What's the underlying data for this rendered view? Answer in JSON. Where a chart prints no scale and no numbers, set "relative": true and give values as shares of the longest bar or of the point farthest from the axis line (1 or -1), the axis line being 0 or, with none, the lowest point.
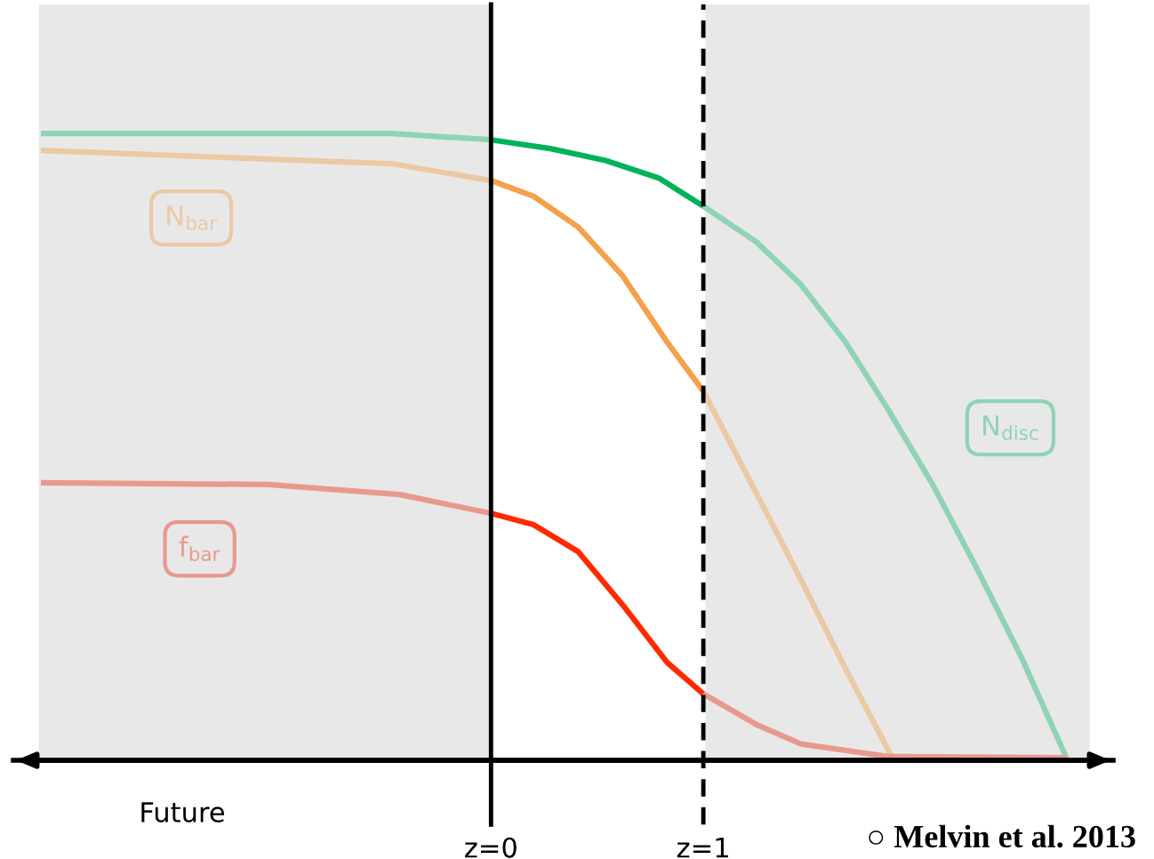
{
  "chart_data": {
    "type": "line",
    "relative": true,
    "xlim": [
      -2.25,
      2.93
    ],
    "xticks": [
      {
        "value": 0,
        "label": "z=0"
      },
      {
        "value": 1,
        "label": "z=1"
      }
    ],
    "series": [
      {
        "name": "N$_{disc}$",
        "color": "#8fd3b5",
        "x": [
          1.0,
          1.25,
          1.46,
          1.67,
          1.87,
          2.08,
          2.29,
          2.5,
          2.71
        ],
        "values": [
          0.884,
          0.827,
          0.759,
          0.667,
          0.56,
          0.44,
          0.305,
          0.163,
          0.004
        ]
      },
      {
        "color": "#8fd3b5",
        "x": [
          -2.12,
          -0.47,
          0
        ],
        "values": [
          1.0,
          1.0,
          0.99
        ]
      },
      {
        "color": "#00b359",
        "x": [
          0,
          0.28,
          0.54,
          0.79,
          1.0
        ],
        "values": [
          0.99,
          0.976,
          0.957,
          0.929,
          0.884
        ]
      },
      {
        "name": "N$_{bar}$",
        "color": "#ecc8a4",
        "x": [
          -2.12,
          -0.47,
          0
        ],
        "values": [
          0.973,
          0.952,
          0.925
        ]
      },
      {
        "color": "#f5a04a",
        "x": [
          0,
          0.2,
          0.41,
          0.62,
          0.83,
          1.0
        ],
        "values": [
          0.925,
          0.9,
          0.851,
          0.773,
          0.667,
          0.589
        ]
      },
      {
        "color": "#ecc8a4",
        "x": [
          1.0,
          1.25,
          1.46,
          1.67,
          1.89
        ],
        "values": [
          0.589,
          0.426,
          0.288,
          0.146,
          0.004
        ]
      },
      {
        "name": "f$_{bar}$",
        "color": "#e8998e",
        "x": [
          -2.12,
          -1.05,
          -0.43,
          0
        ],
        "values": [
          0.443,
          0.44,
          0.424,
          0.394
        ]
      },
      {
        "color": "#ff2a00",
        "x": [
          0,
          0.2,
          0.41,
          0.62,
          0.83,
          1.0
        ],
        "values": [
          0.394,
          0.376,
          0.333,
          0.248,
          0.156,
          0.106
        ]
      },
      {
        "color": "#e8998e",
        "x": [
          1.0,
          1.25,
          1.46,
          1.87,
          2.71
        ],
        "values": [
          0.106,
          0.057,
          0.026,
          0.006,
          0.004
        ]
      }
    ],
    "ref_lines": [
      {
        "axis": "x",
        "value": 0,
        "color": "#000000",
        "line_style": "solid"
      },
      {
        "axis": "x",
        "value": 1,
        "color": "#000000",
        "line_style": "dashed"
      }
    ],
    "bands": [
      {
        "axis": "x",
        "from": -2.13,
        "to": 0,
        "color": "#e8e8e8"
      },
      {
        "axis": "x",
        "from": 1.01,
        "to": 2.82,
        "color": "#e8e8e8"
      }
    ],
    "annotations": [
      "Future",
      "○ Melvin et al. 2013"
    ]
  }
}
